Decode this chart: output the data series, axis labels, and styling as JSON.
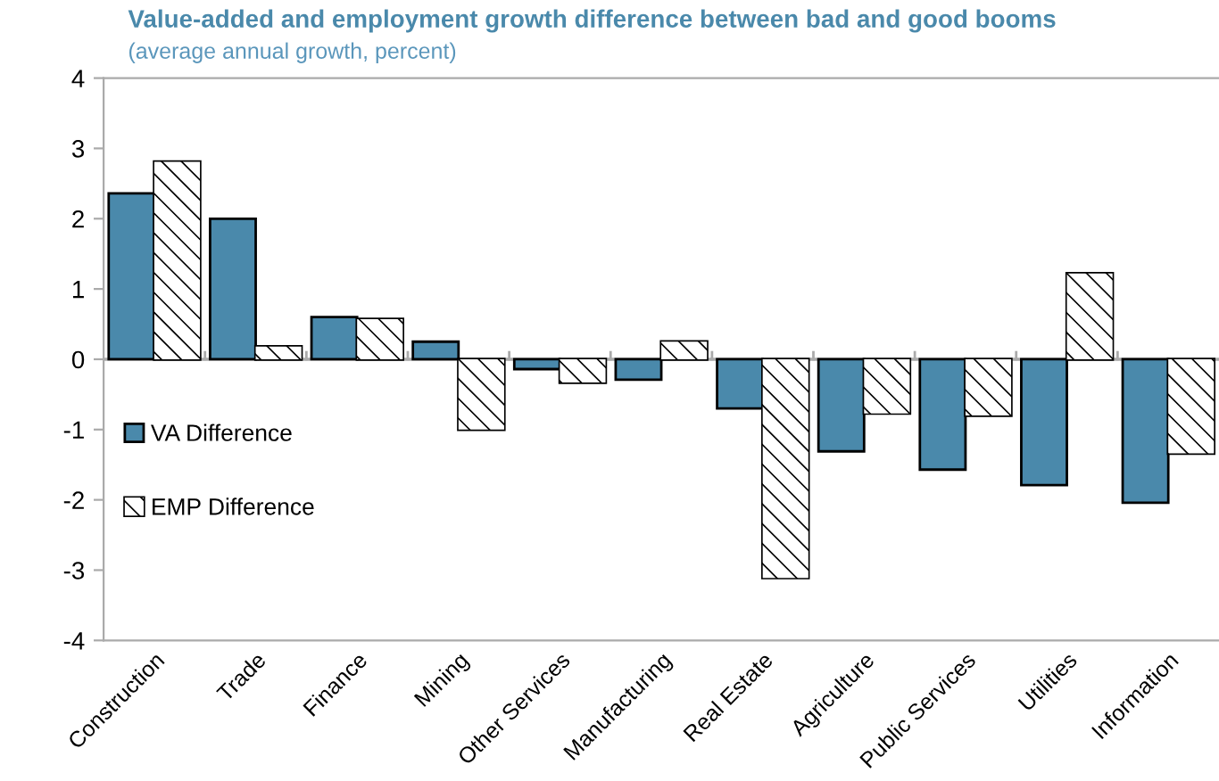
{
  "chart_data": {
    "type": "bar",
    "title": "Value-added and employment growth difference between bad and good booms",
    "subtitle": "(average annual growth, percent)",
    "categories": [
      "Construction",
      "Trade",
      "Finance",
      "Mining",
      "Other Services",
      "Manufacturing",
      "Real Estate",
      "Agriculture",
      "Public Services",
      "Utilities",
      "Information"
    ],
    "series": [
      {
        "name": "VA Difference",
        "color": "#4a89ab",
        "values": [
          2.36,
          2.0,
          0.6,
          0.25,
          -0.14,
          -0.29,
          -0.7,
          -1.31,
          -1.57,
          -1.79,
          -2.04
        ]
      },
      {
        "name": "EMP Difference",
        "color": "#ffffff",
        "values": [
          2.81,
          0.18,
          0.57,
          -1.0,
          -0.33,
          0.25,
          -3.11,
          -0.77,
          -0.8,
          1.22,
          -1.34
        ]
      }
    ],
    "ylim": [
      -4,
      4
    ],
    "yticks": [
      -4,
      -3,
      -2,
      -1,
      0,
      1,
      2,
      3,
      4
    ],
    "legend": "left"
  }
}
